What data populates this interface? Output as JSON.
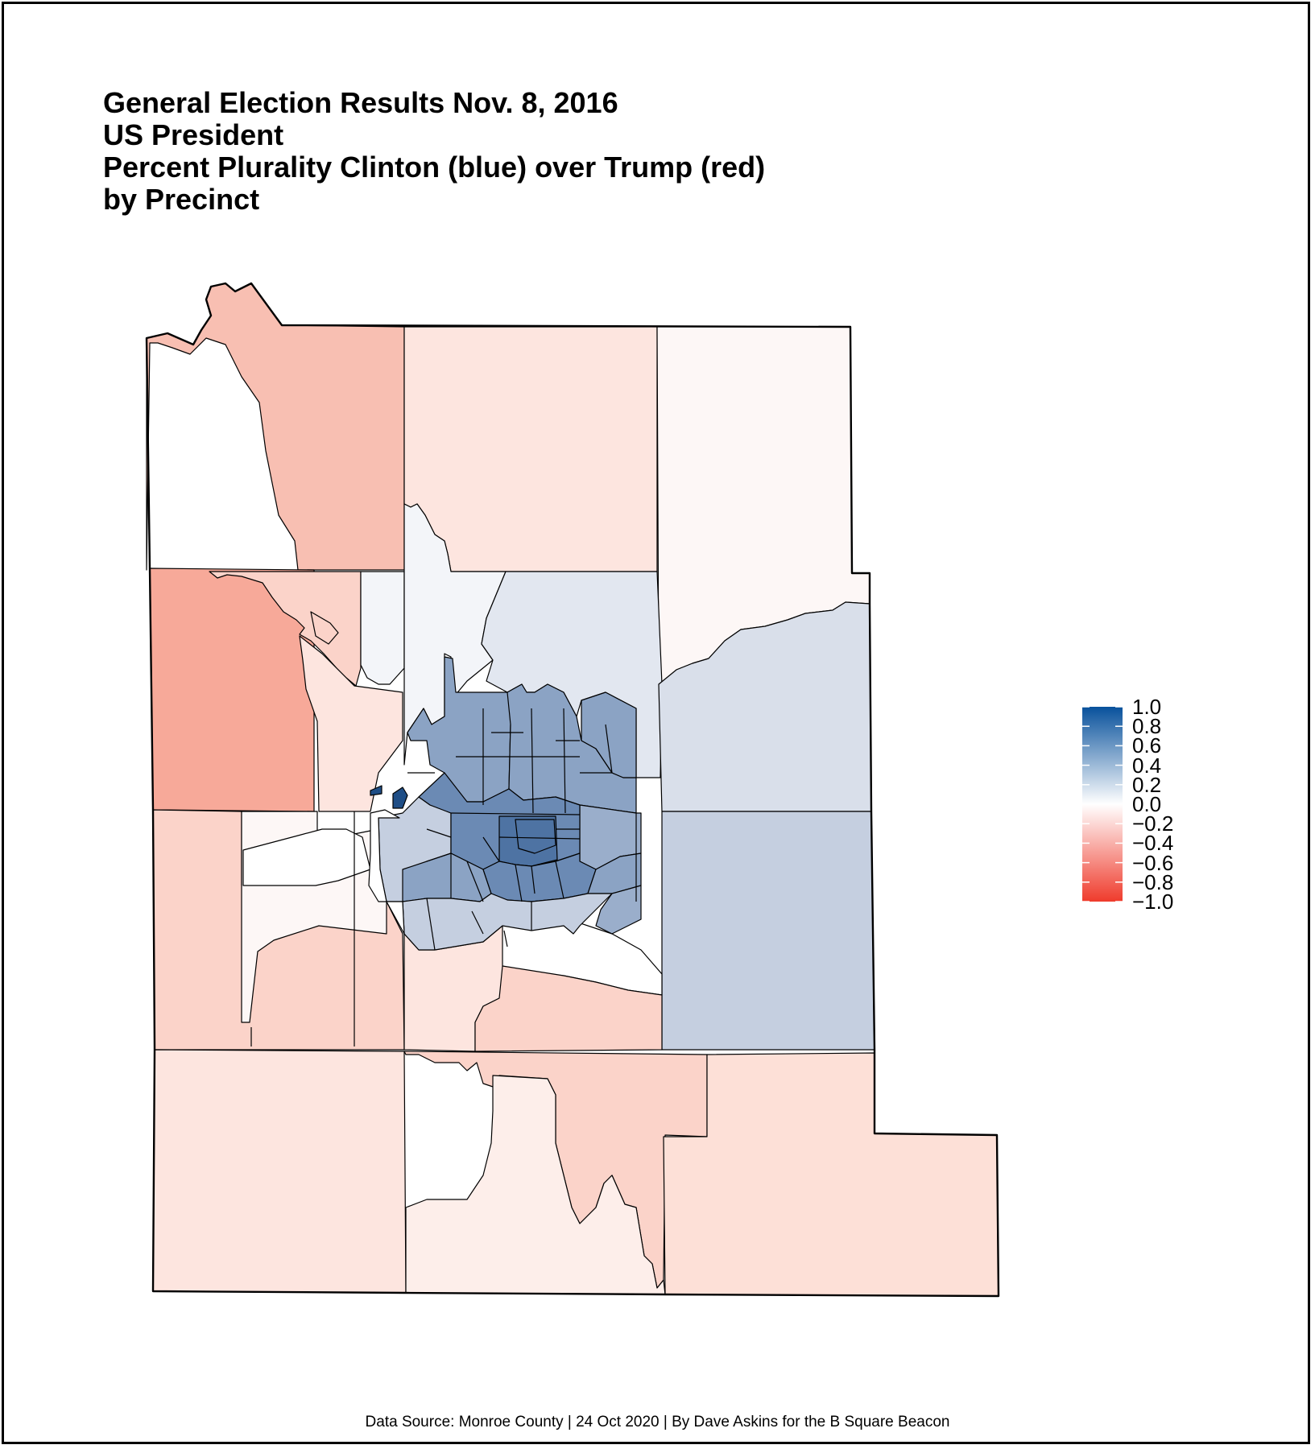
{
  "title_lines": [
    "General Election Results Nov. 8, 2016",
    "US President",
    "Percent Plurality Clinton (blue) over Trump (red)",
    "by Precinct"
  ],
  "legend": {
    "ticks": [
      "1.0",
      "0.8",
      "0.6",
      "0.4",
      "0.2",
      "0.0",
      "−0.2",
      "−0.4",
      "−0.6",
      "−0.8",
      "−1.0"
    ],
    "range": [
      -1.0,
      1.0
    ],
    "high_color": "#08519c",
    "mid_color": "#ffffff",
    "low_color": "#ef3b2c"
  },
  "caption": "Data Source: Monroe County | 24 Oct 2020 | By Dave Askins for the B Square Beacon",
  "colors": {
    "outline": "#000000",
    "deep_red": "#f7a999",
    "red": "#f8bfb2",
    "light_red": "#fbd3c9",
    "pale_red": "#fde5df",
    "near_white": "#fdf7f6",
    "white": "#ffffff",
    "pale_blue": "#e2e7f0",
    "light_blue": "#c5cfe0",
    "mid_blue": "#8ba3c4",
    "blue": "#6b8ab4",
    "dark_blue": "#4e73a3",
    "deep_blue": "#1f4e86"
  }
}
